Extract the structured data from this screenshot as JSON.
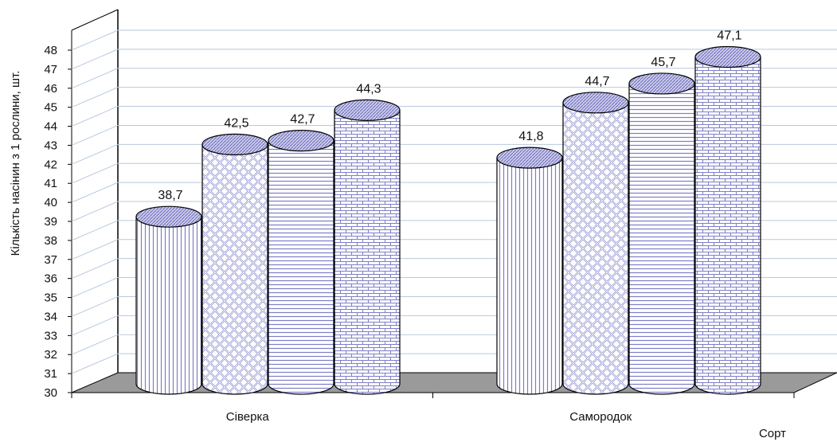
{
  "chart_data": {
    "type": "bar",
    "subtype": "3d-cylinder",
    "title": "",
    "ylabel": "Кількість насінин з 1 рослини, шт.",
    "xlabel": "Сорт",
    "categories": [
      "Сіверка",
      "Самородок"
    ],
    "ylim": [
      30,
      48
    ],
    "yticks": [
      "30",
      "31",
      "32",
      "33",
      "34",
      "35",
      "36",
      "37",
      "38",
      "39",
      "40",
      "41",
      "42",
      "43",
      "44",
      "45",
      "46",
      "47",
      "48"
    ],
    "grid": true,
    "legend": "none",
    "series": [
      {
        "pattern": "vertical-lines",
        "values": [
          38.7,
          41.8
        ],
        "labels": [
          "38,7",
          "41,8"
        ]
      },
      {
        "pattern": "lattice",
        "values": [
          42.5,
          44.7
        ],
        "labels": [
          "42,5",
          "44,7"
        ]
      },
      {
        "pattern": "horizontal-lines",
        "values": [
          42.7,
          45.7
        ],
        "labels": [
          "42,7",
          "45,7"
        ]
      },
      {
        "pattern": "brick",
        "values": [
          44.3,
          47.1
        ],
        "labels": [
          "44,3",
          "47,1"
        ]
      }
    ],
    "colors": {
      "bar_fill": "#ffffff",
      "pattern": "#7e7ec8",
      "gridline": "#b9c9de",
      "floor": "#9a9a9a",
      "axis": "#000000"
    }
  }
}
